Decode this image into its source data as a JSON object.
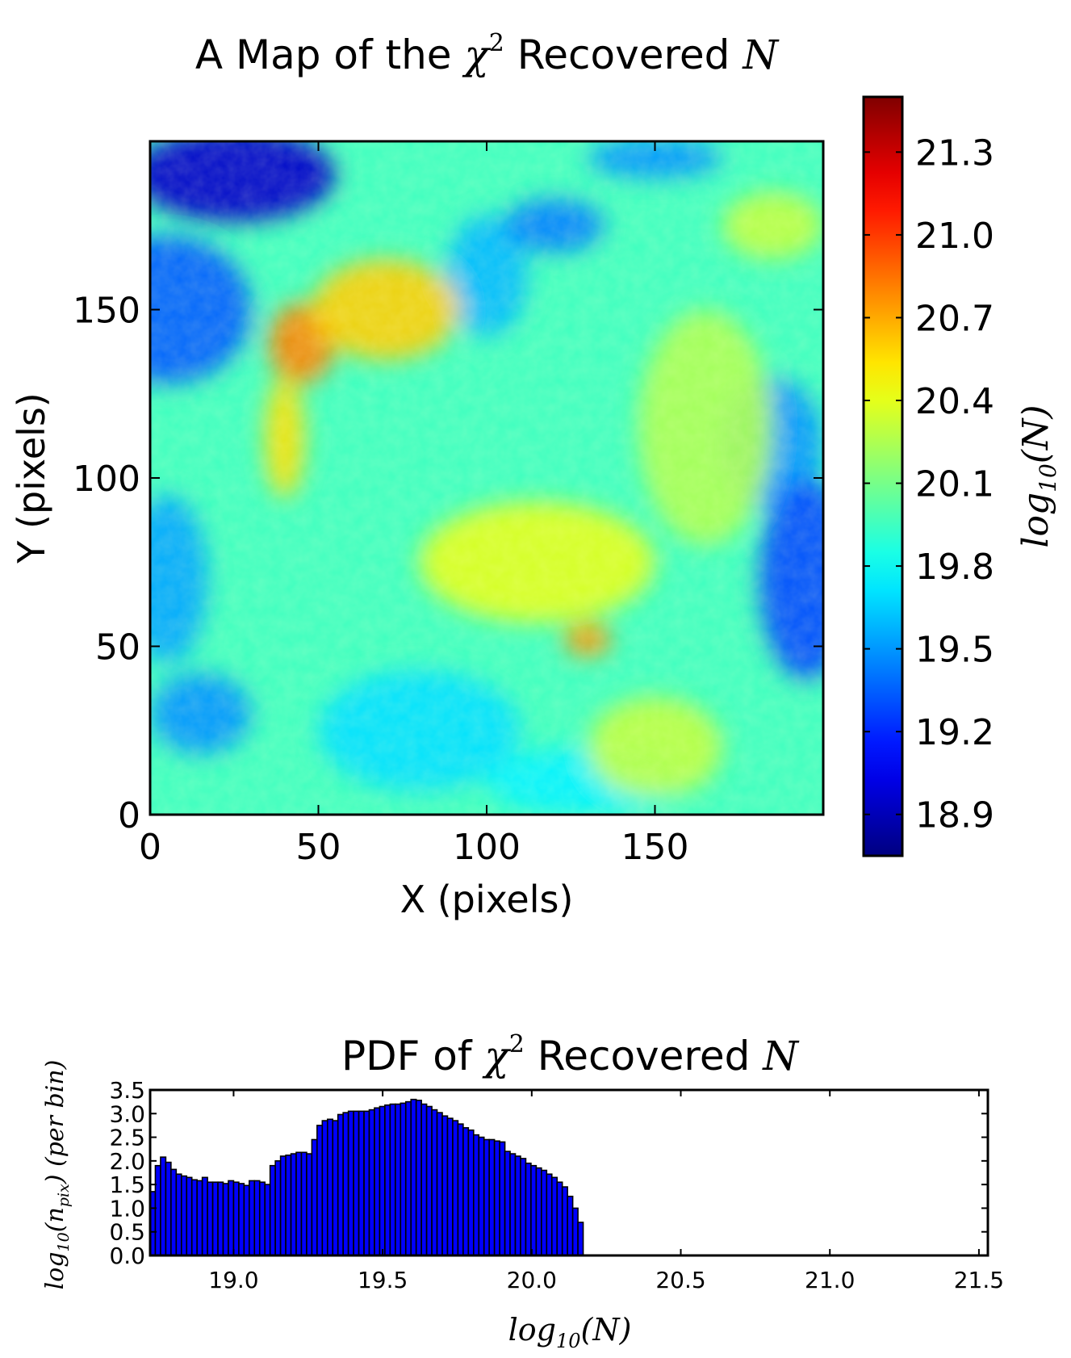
{
  "chart_data": [
    {
      "type": "heatmap",
      "title": {
        "prefix": "A Map of the ",
        "chi": "χ",
        "sup": "2",
        "middle": " Recovered ",
        "var": "N"
      },
      "xlabel": "X (pixels)",
      "ylabel": "Y (pixels)",
      "xlim": [
        0,
        200
      ],
      "ylim": [
        0,
        200
      ],
      "xticks": [
        0,
        50,
        100,
        150
      ],
      "yticks": [
        0,
        50,
        100,
        150
      ],
      "xtick_labels": [
        "0",
        "50",
        "100",
        "150"
      ],
      "ytick_labels": [
        "0",
        "50",
        "100",
        "150"
      ],
      "colormap": "jet",
      "colorbar": {
        "label": {
          "pre": "log",
          "sub": "10",
          "post": "(N)"
        },
        "range": [
          18.75,
          21.5
        ],
        "ticks": [
          18.9,
          19.2,
          19.5,
          19.8,
          20.1,
          20.4,
          20.7,
          21.0,
          21.3
        ],
        "tick_labels": [
          "18.9",
          "19.2",
          "19.5",
          "19.8",
          "20.1",
          "20.4",
          "20.7",
          "21.0",
          "21.3"
        ]
      },
      "background_value": 19.95,
      "features": [
        {
          "kind": "low",
          "x": 25,
          "y": 190,
          "value": 18.95,
          "rx": 30,
          "ry": 14
        },
        {
          "kind": "low",
          "x": 5,
          "y": 150,
          "value": 19.35,
          "rx": 25,
          "ry": 22
        },
        {
          "kind": "low",
          "x": 100,
          "y": 160,
          "value": 19.6,
          "rx": 12,
          "ry": 18
        },
        {
          "kind": "low",
          "x": 120,
          "y": 175,
          "value": 19.45,
          "rx": 15,
          "ry": 8
        },
        {
          "kind": "low",
          "x": 150,
          "y": 195,
          "value": 19.5,
          "rx": 20,
          "ry": 6
        },
        {
          "kind": "low",
          "x": 185,
          "y": 110,
          "value": 19.5,
          "rx": 15,
          "ry": 20
        },
        {
          "kind": "low",
          "x": 195,
          "y": 70,
          "value": 19.3,
          "rx": 14,
          "ry": 30
        },
        {
          "kind": "low",
          "x": 5,
          "y": 70,
          "value": 19.55,
          "rx": 12,
          "ry": 25
        },
        {
          "kind": "low",
          "x": 15,
          "y": 30,
          "value": 19.5,
          "rx": 15,
          "ry": 12
        },
        {
          "kind": "low",
          "x": 80,
          "y": 25,
          "value": 19.7,
          "rx": 30,
          "ry": 18
        },
        {
          "kind": "low",
          "x": 130,
          "y": 10,
          "value": 19.75,
          "rx": 30,
          "ry": 10
        },
        {
          "kind": "high",
          "x": 45,
          "y": 140,
          "value": 20.8,
          "rx": 10,
          "ry": 12
        },
        {
          "kind": "high",
          "x": 70,
          "y": 150,
          "value": 20.6,
          "rx": 22,
          "ry": 15
        },
        {
          "kind": "high",
          "x": 40,
          "y": 112,
          "value": 20.55,
          "rx": 6,
          "ry": 18
        },
        {
          "kind": "high",
          "x": 115,
          "y": 75,
          "value": 20.4,
          "rx": 35,
          "ry": 18
        },
        {
          "kind": "high",
          "x": 130,
          "y": 52,
          "value": 20.75,
          "rx": 7,
          "ry": 5
        },
        {
          "kind": "high",
          "x": 165,
          "y": 115,
          "value": 20.25,
          "rx": 20,
          "ry": 35
        },
        {
          "kind": "high",
          "x": 150,
          "y": 20,
          "value": 20.3,
          "rx": 20,
          "ry": 15
        },
        {
          "kind": "high",
          "x": 185,
          "y": 175,
          "value": 20.3,
          "rx": 15,
          "ry": 10
        }
      ]
    },
    {
      "type": "bar",
      "title": {
        "prefix": "PDF of ",
        "chi": "χ",
        "sup": "2",
        "middle": " Recovered ",
        "var": "N"
      },
      "xlabel": {
        "pre": "log",
        "sub": "10",
        "post": "(N)"
      },
      "ylabel": {
        "pre": "log",
        "sub": "10",
        "mid": "(n",
        "sub2": "pix",
        "post": ") (per bin)"
      },
      "xlim": [
        18.72,
        21.53
      ],
      "ylim": [
        0,
        3.5
      ],
      "xticks": [
        19.0,
        19.5,
        20.0,
        20.5,
        21.0,
        21.5
      ],
      "xtick_labels": [
        "19.0",
        "19.5",
        "20.0",
        "20.5",
        "21.0",
        "21.5"
      ],
      "yticks": [
        0.0,
        0.5,
        1.0,
        1.5,
        2.0,
        2.5,
        3.0,
        3.5
      ],
      "ytick_labels": [
        "0.0",
        "0.5",
        "1.0",
        "1.5",
        "2.0",
        "2.5",
        "3.0",
        "3.5"
      ],
      "bin_start": 18.72,
      "bin_width": 0.0175,
      "bar_color": "#0000ff",
      "values": [
        1.35,
        1.9,
        2.08,
        1.97,
        1.82,
        1.72,
        1.68,
        1.65,
        1.6,
        1.58,
        1.65,
        1.55,
        1.55,
        1.55,
        1.52,
        1.58,
        1.55,
        1.52,
        1.48,
        1.58,
        1.58,
        1.55,
        1.5,
        1.9,
        2.0,
        2.1,
        2.12,
        2.15,
        2.18,
        2.18,
        2.15,
        2.45,
        2.75,
        2.85,
        2.88,
        2.85,
        2.98,
        3.02,
        3.05,
        3.05,
        3.05,
        3.05,
        3.08,
        3.12,
        3.15,
        3.18,
        3.2,
        3.2,
        3.22,
        3.25,
        3.3,
        3.28,
        3.2,
        3.15,
        3.08,
        3.02,
        2.95,
        2.9,
        2.85,
        2.78,
        2.7,
        2.65,
        2.55,
        2.5,
        2.45,
        2.45,
        2.42,
        2.4,
        2.2,
        2.15,
        2.1,
        2.05,
        1.95,
        1.9,
        1.85,
        1.8,
        1.72,
        1.65,
        1.55,
        1.45,
        1.25,
        1.0,
        0.7
      ]
    }
  ]
}
